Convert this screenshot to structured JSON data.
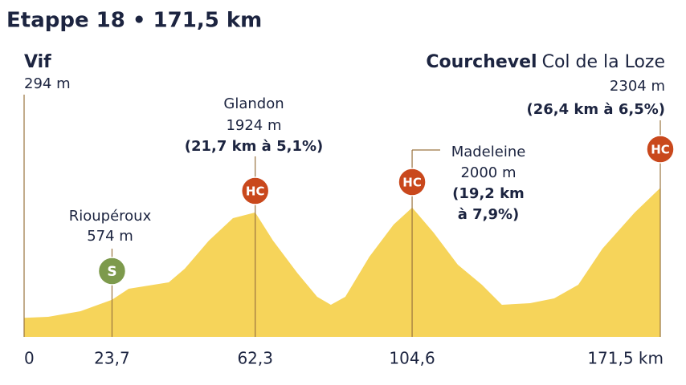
{
  "chart_data": {
    "type": "area",
    "title": "Etappe 18 • 171,5 km",
    "color": "#f6d45a",
    "x": [
      0,
      6.5,
      15.2,
      23.7,
      28.2,
      39,
      43.3,
      49.8,
      56.3,
      62.3,
      67.1,
      73.6,
      79,
      82.7,
      86.6,
      93.1,
      99.6,
      104.6,
      110.4,
      116.9,
      123.4,
      128.8,
      136.4,
      142.9,
      149.4,
      155.9,
      164.6,
      171.5
    ],
    "values": [
      294,
      310,
      397,
      574,
      744,
      844,
      1055,
      1489,
      1836,
      1924,
      1489,
      993,
      620,
      496,
      620,
      1241,
      1737,
      2000,
      1613,
      1117,
      806,
      496,
      521,
      596,
      806,
      1365,
      1923,
      2304
    ],
    "xlim": [
      0,
      171.5
    ],
    "ylim": [
      0,
      2500
    ],
    "xticks": [
      0,
      {
        "value": 23.7,
        "label": "23,7"
      },
      {
        "value": 62.3,
        "label": "62,3"
      },
      {
        "value": 104.6,
        "label": "104,6"
      },
      {
        "value": 171.5,
        "label": "171,5 km"
      }
    ],
    "annotations": [
      {
        "x": 0,
        "name": "Vif",
        "elevation": "294 m"
      },
      {
        "x": 23.7,
        "name": "Rioupéroux",
        "elevation": "574 m",
        "badge": "S",
        "badge_color": "#7d9a4c"
      },
      {
        "x": 62.3,
        "name": "Glandon",
        "elevation": "1924 m",
        "detail": [
          "(21,7 km à 5,1%)"
        ],
        "badge": "HC",
        "badge_color": "#c9481c"
      },
      {
        "x": 104.6,
        "name": "Madeleine",
        "elevation": "2000 m",
        "detail": [
          "(19,2 km",
          "à 7,9%)"
        ],
        "badge": "HC",
        "badge_color": "#c9481c"
      },
      {
        "x": 171.5,
        "name": "Courchevel",
        "subname": "Col de la Loze",
        "elevation": "2304 m",
        "detail": [
          "(26,4 km à 6,5%)"
        ],
        "badge": "HC",
        "badge_color": "#c9481c"
      }
    ]
  }
}
